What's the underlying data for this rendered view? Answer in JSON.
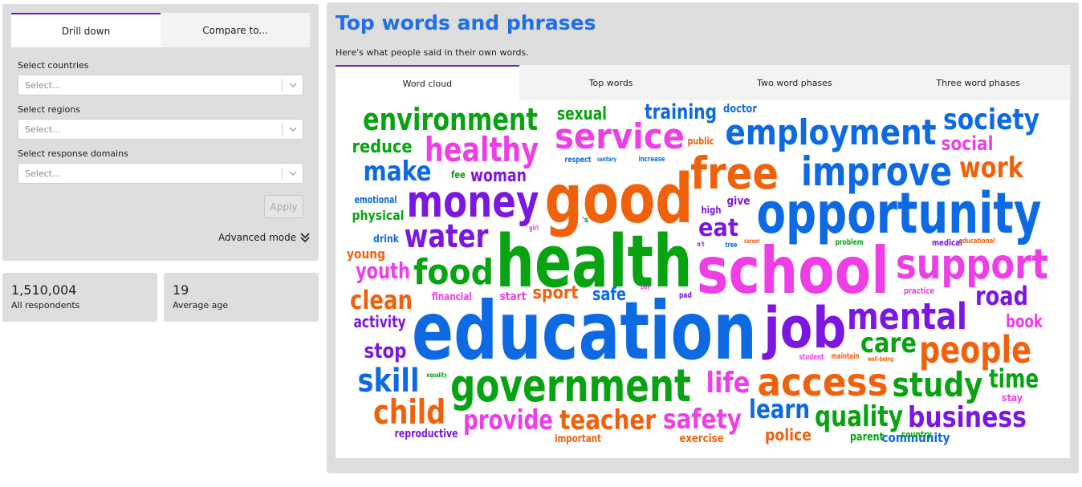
{
  "filters": {
    "tabs": [
      "Drill down",
      "Compare to..."
    ],
    "countries": {
      "label": "Select countries",
      "placeholder": "Select..."
    },
    "regions": {
      "label": "Select regions",
      "placeholder": "Select..."
    },
    "domains": {
      "label": "Select response domains",
      "placeholder": "Select..."
    },
    "apply_label": "Apply",
    "advanced_label": "Advanced mode"
  },
  "stats": [
    {
      "value": "1,510,004",
      "label": "All respondents"
    },
    {
      "value": "19",
      "label": "Average age"
    }
  ],
  "main": {
    "title": "Top words and phrases",
    "subtitle": "Here's what people said in their own words.",
    "tabs": [
      "Word cloud",
      "Top words",
      "Two word phases",
      "Three word phases"
    ]
  },
  "colors": {
    "blue": "#0d6ae3",
    "green": "#07a310",
    "orange": "#f0610c",
    "pink": "#ee3fe6",
    "purple": "#7b17e0"
  },
  "word_cloud": [
    {
      "text": "education",
      "color": "blue"
    },
    {
      "text": "health",
      "color": "green"
    },
    {
      "text": "school",
      "color": "pink"
    },
    {
      "text": "good",
      "color": "orange"
    },
    {
      "text": "opportunity",
      "color": "blue"
    },
    {
      "text": "job",
      "color": "purple"
    },
    {
      "text": "government",
      "color": "green"
    },
    {
      "text": "money",
      "color": "purple"
    },
    {
      "text": "free",
      "color": "orange"
    },
    {
      "text": "improve",
      "color": "blue"
    },
    {
      "text": "support",
      "color": "pink"
    },
    {
      "text": "employment",
      "color": "blue"
    },
    {
      "text": "service",
      "color": "pink"
    },
    {
      "text": "environment",
      "color": "green"
    },
    {
      "text": "access",
      "color": "orange"
    },
    {
      "text": "mental",
      "color": "purple"
    },
    {
      "text": "food",
      "color": "green"
    },
    {
      "text": "water",
      "color": "purple"
    },
    {
      "text": "healthy",
      "color": "pink"
    },
    {
      "text": "people",
      "color": "orange"
    },
    {
      "text": "study",
      "color": "green"
    },
    {
      "text": "child",
      "color": "orange"
    },
    {
      "text": "skill",
      "color": "blue"
    },
    {
      "text": "society",
      "color": "blue"
    },
    {
      "text": "business",
      "color": "purple"
    },
    {
      "text": "teacher",
      "color": "orange"
    },
    {
      "text": "provide",
      "color": "pink"
    },
    {
      "text": "safety",
      "color": "pink"
    },
    {
      "text": "quality",
      "color": "green"
    },
    {
      "text": "make",
      "color": "blue"
    },
    {
      "text": "work",
      "color": "orange"
    },
    {
      "text": "life",
      "color": "pink"
    },
    {
      "text": "clean",
      "color": "orange"
    },
    {
      "text": "care",
      "color": "green"
    },
    {
      "text": "time",
      "color": "green"
    },
    {
      "text": "learn",
      "color": "blue"
    },
    {
      "text": "road",
      "color": "purple"
    },
    {
      "text": "eat",
      "color": "purple"
    },
    {
      "text": "youth",
      "color": "pink"
    },
    {
      "text": "training",
      "color": "blue"
    },
    {
      "text": "reduce",
      "color": "green"
    },
    {
      "text": "social",
      "color": "pink"
    },
    {
      "text": "stop",
      "color": "purple"
    },
    {
      "text": "sexual",
      "color": "green"
    },
    {
      "text": "woman",
      "color": "purple"
    },
    {
      "text": "sport",
      "color": "orange"
    },
    {
      "text": "safe",
      "color": "blue"
    },
    {
      "text": "police",
      "color": "orange"
    },
    {
      "text": "activity",
      "color": "purple"
    },
    {
      "text": "book",
      "color": "pink"
    },
    {
      "text": "physical",
      "color": "green"
    },
    {
      "text": "young",
      "color": "orange"
    },
    {
      "text": "community",
      "color": "blue"
    },
    {
      "text": "reproductive",
      "color": "purple"
    },
    {
      "text": "exercise",
      "color": "orange"
    },
    {
      "text": "important",
      "color": "orange"
    },
    {
      "text": "parent",
      "color": "green"
    },
    {
      "text": "financial",
      "color": "pink"
    },
    {
      "text": "start",
      "color": "pink"
    },
    {
      "text": "drink",
      "color": "blue"
    },
    {
      "text": "doctor",
      "color": "blue"
    },
    {
      "text": "emotional",
      "color": "blue"
    },
    {
      "text": "stay",
      "color": "pink"
    },
    {
      "text": "country",
      "color": "green"
    },
    {
      "text": "give",
      "color": "purple"
    },
    {
      "text": "high",
      "color": "purple"
    },
    {
      "text": "public",
      "color": "orange"
    },
    {
      "text": "fee",
      "color": "green"
    },
    {
      "text": "respect",
      "color": "blue"
    },
    {
      "text": "increase",
      "color": "blue"
    },
    {
      "text": "sanitary",
      "color": "blue"
    },
    {
      "text": "practice",
      "color": "pink"
    },
    {
      "text": "problem",
      "color": "green"
    },
    {
      "text": "medical",
      "color": "purple"
    },
    {
      "text": "educational",
      "color": "orange"
    },
    {
      "text": "girl",
      "color": "pink"
    },
    {
      "text": "'s",
      "color": "green"
    },
    {
      "text": "pay",
      "color": "pink"
    },
    {
      "text": "pad",
      "color": "purple"
    },
    {
      "text": "n't",
      "color": "purple"
    },
    {
      "text": "tree",
      "color": "blue"
    },
    {
      "text": "career",
      "color": "orange"
    },
    {
      "text": "student",
      "color": "pink"
    },
    {
      "text": "maintain",
      "color": "orange"
    },
    {
      "text": "well-being",
      "color": "orange"
    },
    {
      "text": "equality",
      "color": "green"
    }
  ]
}
